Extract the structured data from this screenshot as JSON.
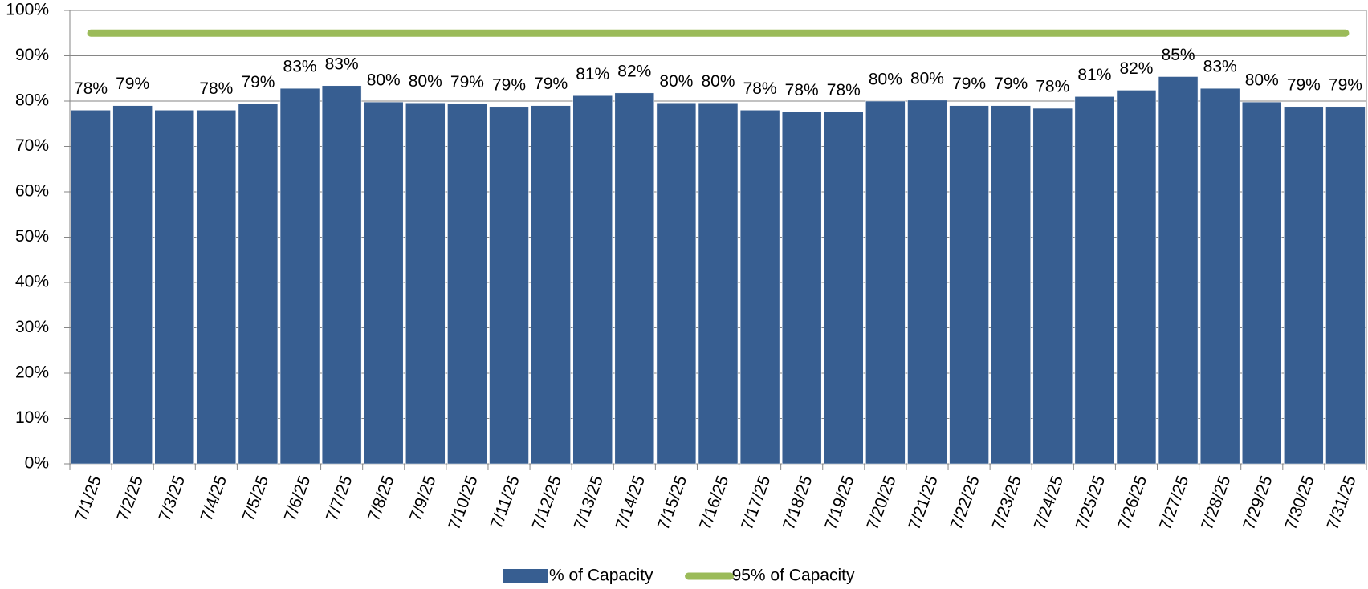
{
  "chart_data": {
    "type": "bar",
    "categories": [
      "7/1/25",
      "7/2/25",
      "7/3/25",
      "7/4/25",
      "7/5/25",
      "7/6/25",
      "7/7/25",
      "7/8/25",
      "7/9/25",
      "7/10/25",
      "7/11/25",
      "7/12/25",
      "7/13/25",
      "7/14/25",
      "7/15/25",
      "7/16/25",
      "7/17/25",
      "7/18/25",
      "7/19/25",
      "7/20/25",
      "7/21/25",
      "7/22/25",
      "7/23/25",
      "7/24/25",
      "7/25/25",
      "7/26/25",
      "7/27/25",
      "7/28/25",
      "7/29/25",
      "7/30/25",
      "7/31/25"
    ],
    "series": [
      {
        "name": "% of Capacity",
        "type": "bar",
        "color": "#375e91",
        "values": [
          78,
          79,
          78,
          78,
          79.4,
          82.8,
          83.4,
          79.8,
          79.6,
          79.4,
          78.8,
          79,
          81.2,
          81.8,
          79.6,
          79.6,
          78,
          77.6,
          77.6,
          80,
          80.2,
          79,
          79,
          78.4,
          81,
          82.4,
          85.4,
          82.8,
          79.8,
          78.8,
          78.8
        ],
        "value_labels": [
          "78%",
          "79%",
          null,
          "78%",
          "79%",
          "83%",
          "83%",
          "80%",
          "80%",
          "79%",
          "79%",
          "79%",
          "81%",
          "82%",
          "80%",
          "80%",
          "78%",
          "78%",
          "78%",
          "80%",
          "80%",
          "79%",
          "79%",
          "78%",
          "81%",
          "82%",
          "85%",
          "83%",
          "80%",
          "79%",
          "79%"
        ]
      },
      {
        "name": "95% of Capacity",
        "type": "line",
        "color": "#9bbb59",
        "values": [
          95,
          95,
          95,
          95,
          95,
          95,
          95,
          95,
          95,
          95,
          95,
          95,
          95,
          95,
          95,
          95,
          95,
          95,
          95,
          95,
          95,
          95,
          95,
          95,
          95,
          95,
          95,
          95,
          95,
          95,
          95
        ]
      }
    ],
    "ylim": [
      0,
      100
    ],
    "yticks": [
      {
        "value": 0,
        "label": "0%"
      },
      {
        "value": 10,
        "label": "10%"
      },
      {
        "value": 20,
        "label": "20%"
      },
      {
        "value": 30,
        "label": "30%"
      },
      {
        "value": 40,
        "label": "40%"
      },
      {
        "value": 50,
        "label": "50%"
      },
      {
        "value": 60,
        "label": "60%"
      },
      {
        "value": 70,
        "label": "70%"
      },
      {
        "value": 80,
        "label": "80%"
      },
      {
        "value": 90,
        "label": "90%"
      },
      {
        "value": 100,
        "label": "100%"
      }
    ],
    "grid": true,
    "legend": "bottom"
  }
}
